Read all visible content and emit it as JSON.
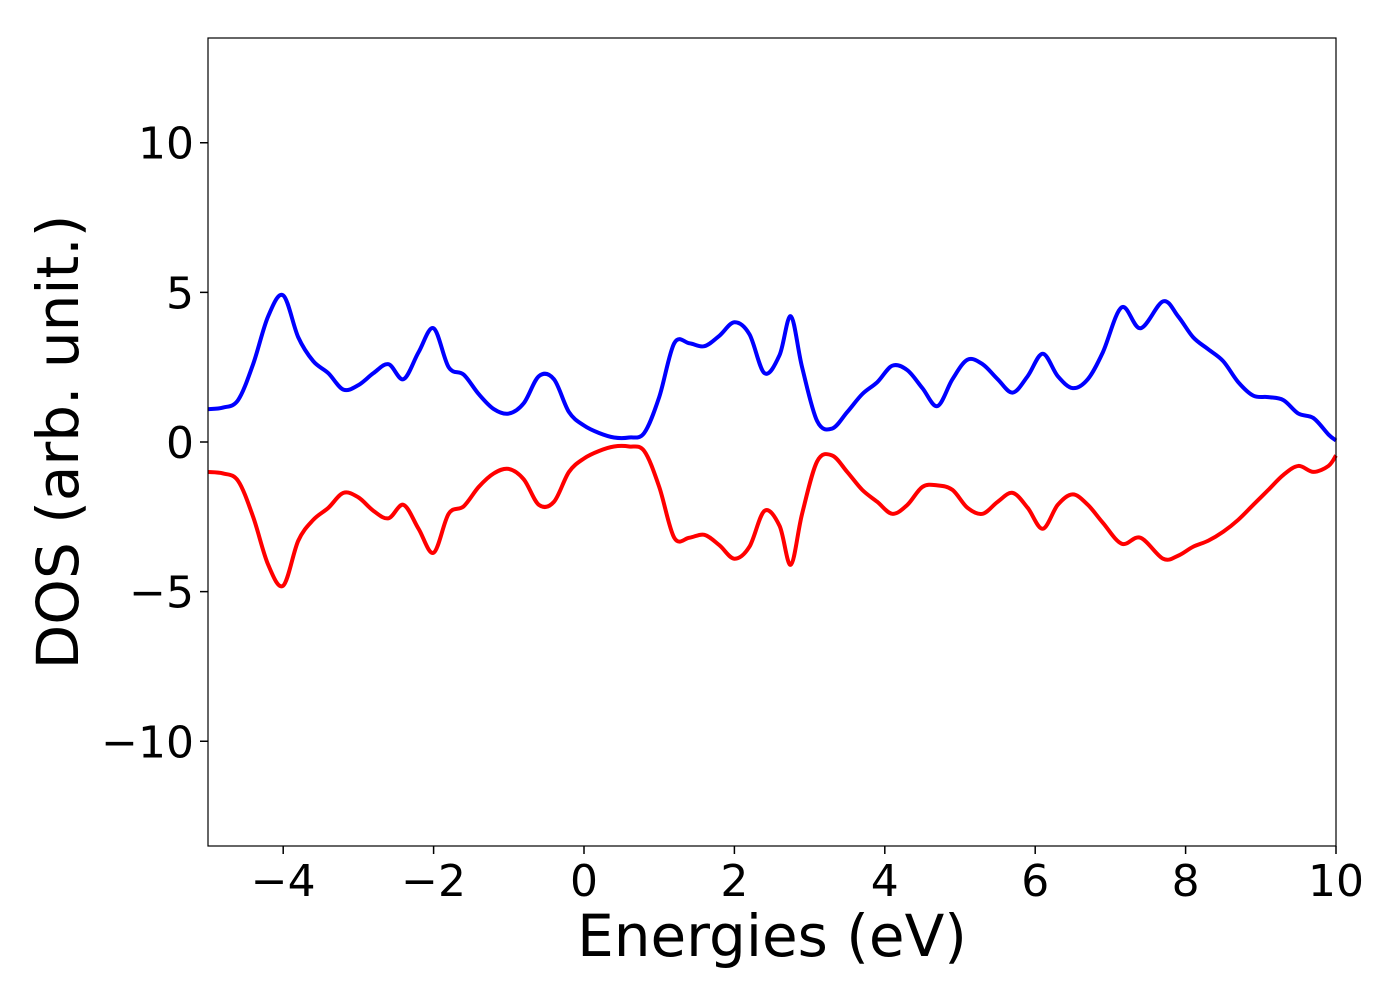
{
  "chart_data": {
    "type": "line",
    "title": "",
    "xlabel": "Energies (eV)",
    "ylabel": "DOS (arb. unit.)",
    "xlim": [
      -5,
      10
    ],
    "ylim": [
      -13.5,
      13.5
    ],
    "xticks": [
      -4,
      -2,
      0,
      2,
      4,
      6,
      8,
      10
    ],
    "xtick_labels": [
      "−4",
      "−2",
      "0",
      "2",
      "4",
      "6",
      "8",
      "10"
    ],
    "yticks": [
      -10,
      -5,
      0,
      5,
      10
    ],
    "ytick_labels": [
      "−10",
      "−5",
      "0",
      "5",
      "10"
    ],
    "grid": false,
    "legend": "none",
    "series": [
      {
        "color": "#0000ff",
        "x": [
          -5.0,
          -4.8,
          -4.6,
          -4.4,
          -4.2,
          -4.0,
          -3.8,
          -3.6,
          -3.4,
          -3.2,
          -3.0,
          -2.8,
          -2.6,
          -2.4,
          -2.2,
          -2.0,
          -1.8,
          -1.6,
          -1.4,
          -1.2,
          -1.0,
          -0.8,
          -0.6,
          -0.4,
          -0.2,
          0.0,
          0.2,
          0.4,
          0.6,
          0.8,
          1.0,
          1.2,
          1.4,
          1.6,
          1.8,
          2.0,
          2.2,
          2.4,
          2.6,
          2.75,
          2.9,
          3.1,
          3.3,
          3.5,
          3.7,
          3.9,
          4.1,
          4.3,
          4.5,
          4.7,
          4.9,
          5.1,
          5.3,
          5.5,
          5.7,
          5.9,
          6.1,
          6.3,
          6.5,
          6.7,
          6.9,
          7.15,
          7.4,
          7.7,
          7.9,
          8.1,
          8.3,
          8.5,
          8.7,
          8.9,
          9.1,
          9.3,
          9.5,
          9.7,
          9.9,
          10.0
        ],
        "y": [
          1.1,
          1.15,
          1.4,
          2.6,
          4.2,
          4.9,
          3.5,
          2.7,
          2.3,
          1.75,
          1.9,
          2.3,
          2.6,
          2.1,
          3.0,
          3.8,
          2.5,
          2.25,
          1.6,
          1.1,
          0.95,
          1.3,
          2.2,
          2.1,
          1.0,
          0.55,
          0.3,
          0.15,
          0.15,
          0.3,
          1.5,
          3.3,
          3.3,
          3.2,
          3.55,
          4.0,
          3.6,
          2.3,
          2.9,
          4.2,
          2.5,
          0.7,
          0.45,
          1.0,
          1.6,
          2.0,
          2.55,
          2.4,
          1.8,
          1.2,
          2.1,
          2.75,
          2.6,
          2.1,
          1.65,
          2.2,
          2.95,
          2.2,
          1.8,
          2.1,
          3.0,
          4.5,
          3.8,
          4.7,
          4.2,
          3.5,
          3.1,
          2.7,
          2.0,
          1.55,
          1.5,
          1.4,
          0.95,
          0.8,
          0.25,
          0.05
        ]
      },
      {
        "color": "#ff0000",
        "x": [
          -5.0,
          -4.8,
          -4.6,
          -4.4,
          -4.2,
          -4.0,
          -3.8,
          -3.6,
          -3.4,
          -3.2,
          -3.0,
          -2.8,
          -2.6,
          -2.4,
          -2.2,
          -2.0,
          -1.8,
          -1.6,
          -1.4,
          -1.2,
          -1.0,
          -0.8,
          -0.6,
          -0.4,
          -0.2,
          0.0,
          0.2,
          0.4,
          0.6,
          0.8,
          1.0,
          1.2,
          1.4,
          1.6,
          1.8,
          2.0,
          2.2,
          2.4,
          2.6,
          2.75,
          2.9,
          3.1,
          3.3,
          3.5,
          3.7,
          3.9,
          4.1,
          4.3,
          4.5,
          4.7,
          4.9,
          5.1,
          5.3,
          5.5,
          5.7,
          5.9,
          6.1,
          6.3,
          6.5,
          6.7,
          6.9,
          7.15,
          7.4,
          7.7,
          7.9,
          8.1,
          8.3,
          8.5,
          8.7,
          8.9,
          9.1,
          9.3,
          9.5,
          9.7,
          9.9,
          10.0
        ],
        "y": [
          -1.0,
          -1.05,
          -1.3,
          -2.5,
          -4.1,
          -4.8,
          -3.3,
          -2.6,
          -2.2,
          -1.7,
          -1.85,
          -2.3,
          -2.55,
          -2.1,
          -2.9,
          -3.7,
          -2.4,
          -2.15,
          -1.5,
          -1.05,
          -0.9,
          -1.25,
          -2.1,
          -2.0,
          -1.0,
          -0.55,
          -0.3,
          -0.15,
          -0.15,
          -0.3,
          -1.5,
          -3.2,
          -3.2,
          -3.1,
          -3.45,
          -3.9,
          -3.5,
          -2.3,
          -2.8,
          -4.1,
          -2.4,
          -0.65,
          -0.45,
          -1.0,
          -1.6,
          -2.0,
          -2.4,
          -2.1,
          -1.5,
          -1.45,
          -1.6,
          -2.2,
          -2.4,
          -2.0,
          -1.7,
          -2.2,
          -2.9,
          -2.1,
          -1.75,
          -2.1,
          -2.7,
          -3.4,
          -3.2,
          -3.9,
          -3.8,
          -3.5,
          -3.3,
          -3.0,
          -2.6,
          -2.1,
          -1.6,
          -1.1,
          -0.8,
          -1.0,
          -0.8,
          -0.45
        ]
      }
    ]
  }
}
